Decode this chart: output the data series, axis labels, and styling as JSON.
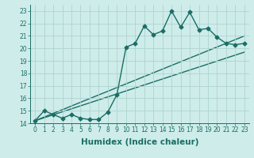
{
  "xlabel": "Humidex (Indice chaleur)",
  "x": [
    0,
    1,
    2,
    3,
    4,
    5,
    6,
    7,
    8,
    9,
    10,
    11,
    12,
    13,
    14,
    15,
    16,
    17,
    18,
    19,
    20,
    21,
    22,
    23
  ],
  "y_main": [
    14.2,
    15.0,
    14.7,
    14.4,
    14.7,
    14.4,
    14.3,
    14.3,
    14.9,
    16.3,
    20.1,
    20.4,
    21.8,
    21.1,
    21.4,
    23.0,
    21.7,
    22.9,
    21.5,
    21.6,
    20.9,
    20.4,
    20.3,
    20.4
  ],
  "line1_x": [
    0,
    23
  ],
  "line1_y": [
    14.2,
    21.0
  ],
  "line2_x": [
    0,
    23
  ],
  "line2_y": [
    14.2,
    19.7
  ],
  "ylim": [
    14,
    23.5
  ],
  "xlim": [
    -0.5,
    23.5
  ],
  "bg_color": "#ceecea",
  "grid_color": "#aed4d0",
  "line_color": "#1a6e65",
  "markersize": 2.5,
  "linewidth": 1.0,
  "tick_fontsize": 5.5,
  "label_fontsize": 7.5
}
